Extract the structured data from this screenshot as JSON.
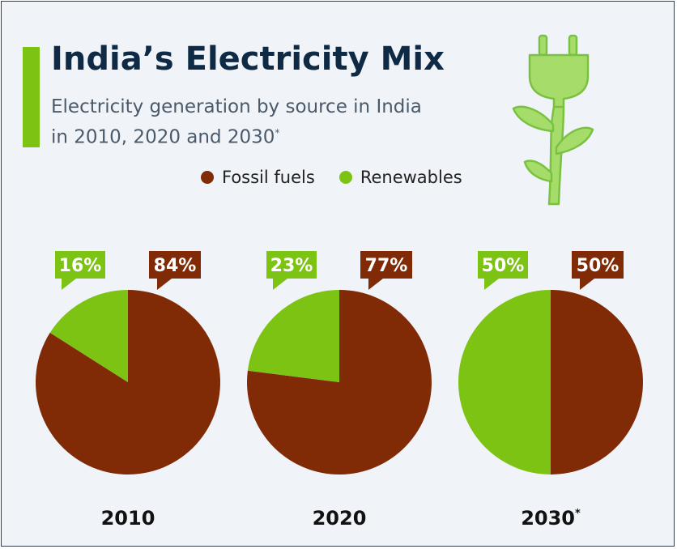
{
  "header": {
    "title": "India’s Electricity Mix",
    "subtitle_line1": "Electricity generation by source in India",
    "subtitle_line2": "in 2010, 2020 and 2030",
    "subtitle_mark": "*"
  },
  "colors": {
    "fossil": "#802a06",
    "renewable": "#7dc314",
    "accent": "#7dc314",
    "plug": "#a6dd6a",
    "plug_stroke": "#7ac142"
  },
  "legend": [
    {
      "label": "Fossil fuels",
      "color": "#802a06"
    },
    {
      "label": "Renewables",
      "color": "#7dc314"
    }
  ],
  "icons": {
    "decoration": "plug-plant-icon"
  },
  "chart_data": {
    "type": "pie",
    "series": [
      {
        "name": "Fossil fuels",
        "values": [
          84,
          77,
          50
        ]
      },
      {
        "name": "Renewables",
        "values": [
          16,
          23,
          50
        ]
      }
    ],
    "pies": [
      {
        "label": "2010",
        "fossil": 84,
        "renewable": 16,
        "fossil_label": "84%",
        "renewable_label": "16%",
        "footnote": ""
      },
      {
        "label": "2020",
        "fossil": 77,
        "renewable": 23,
        "fossil_label": "77%",
        "renewable_label": "23%",
        "footnote": ""
      },
      {
        "label": "2030",
        "fossil": 50,
        "renewable": 50,
        "fossil_label": "50%",
        "renewable_label": "50%",
        "footnote": "*"
      }
    ],
    "legend_position": "top"
  }
}
